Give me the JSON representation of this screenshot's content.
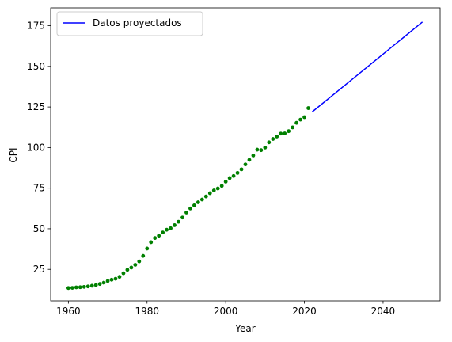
{
  "chart_data": {
    "type": "line",
    "title": "",
    "xlabel": "Year",
    "ylabel": "CPI",
    "xlim": [
      1955.5,
      2054.5
    ],
    "ylim": [
      5.6,
      186.0
    ],
    "xticks": [
      1960,
      1980,
      2000,
      2020,
      2040
    ],
    "yticks": [
      25,
      50,
      75,
      100,
      125,
      150,
      175
    ],
    "grid": false,
    "legend": {
      "position": "top-left",
      "entries": [
        "Datos proyectados"
      ]
    },
    "colors": {
      "observed": "#008000",
      "projected": "#0000ff"
    },
    "series": [
      {
        "kind": "scatter",
        "color": "#008000",
        "x": [
          1960,
          1961,
          1962,
          1963,
          1964,
          1965,
          1966,
          1967,
          1968,
          1969,
          1970,
          1971,
          1972,
          1973,
          1974,
          1975,
          1976,
          1977,
          1978,
          1979,
          1980,
          1981,
          1982,
          1983,
          1984,
          1985,
          1986,
          1987,
          1988,
          1989,
          1990,
          1991,
          1992,
          1993,
          1994,
          1995,
          1996,
          1997,
          1998,
          1999,
          2000,
          2001,
          2002,
          2003,
          2004,
          2005,
          2006,
          2007,
          2008,
          2009,
          2010,
          2011,
          2012,
          2013,
          2014,
          2015,
          2016,
          2017,
          2018,
          2019,
          2020,
          2021
        ],
        "y": [
          13.5,
          13.6,
          13.9,
          14.0,
          14.2,
          14.5,
          14.9,
          15.3,
          16.0,
          16.8,
          17.8,
          18.6,
          19.2,
          20.4,
          22.6,
          24.7,
          26.1,
          27.8,
          29.9,
          33.3,
          37.8,
          41.7,
          44.3,
          45.7,
          47.7,
          49.4,
          50.3,
          52.2,
          54.3,
          56.9,
          60.0,
          62.5,
          64.4,
          66.3,
          68.0,
          69.9,
          71.9,
          73.6,
          74.8,
          76.4,
          79.0,
          81.2,
          82.5,
          84.4,
          86.6,
          89.6,
          92.4,
          95.1,
          98.7,
          98.4,
          100.0,
          103.2,
          105.3,
          106.8,
          108.6,
          108.7,
          110.1,
          112.4,
          115.2,
          117.2,
          118.7,
          124.3
        ]
      },
      {
        "name": "Datos proyectados",
        "kind": "line",
        "color": "#0000ff",
        "x": [
          2022,
          2050
        ],
        "y": [
          122.0,
          177.3
        ]
      }
    ]
  }
}
